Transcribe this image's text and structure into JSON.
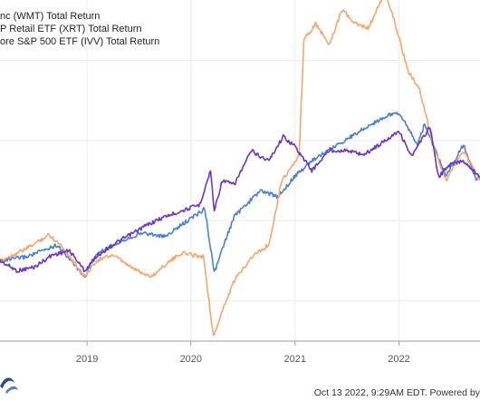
{
  "chart_data": {
    "type": "line",
    "title": "",
    "xlabel": "",
    "ylabel": "",
    "x_ticks": [
      "2019",
      "2020",
      "2021",
      "2022"
    ],
    "x_domain": [
      "2018-03-01",
      "2022-10-13"
    ],
    "ylim": [
      -40,
      130
    ],
    "grid": true,
    "legend_position": "top-left",
    "series": [
      {
        "name": "nc (WMT) Total Return",
        "color": "#6a35c4",
        "points": [
          [
            "2018-03-01",
            0
          ],
          [
            "2018-05-01",
            -5
          ],
          [
            "2018-07-01",
            -3
          ],
          [
            "2018-09-01",
            3
          ],
          [
            "2018-11-01",
            5
          ],
          [
            "2018-12-24",
            -5
          ],
          [
            "2019-02-01",
            2
          ],
          [
            "2019-04-01",
            8
          ],
          [
            "2019-06-01",
            13
          ],
          [
            "2019-08-01",
            18
          ],
          [
            "2019-10-01",
            22
          ],
          [
            "2019-12-01",
            25
          ],
          [
            "2020-02-01",
            28
          ],
          [
            "2020-03-10",
            45
          ],
          [
            "2020-03-23",
            25
          ],
          [
            "2020-04-20",
            40
          ],
          [
            "2020-06-01",
            38
          ],
          [
            "2020-08-01",
            55
          ],
          [
            "2020-09-01",
            52
          ],
          [
            "2020-10-01",
            50
          ],
          [
            "2020-11-20",
            62
          ],
          [
            "2021-01-01",
            57
          ],
          [
            "2021-03-01",
            45
          ],
          [
            "2021-05-01",
            55
          ],
          [
            "2021-07-01",
            55
          ],
          [
            "2021-09-01",
            53
          ],
          [
            "2021-11-15",
            60
          ],
          [
            "2021-12-31",
            65
          ],
          [
            "2022-02-15",
            52
          ],
          [
            "2022-04-20",
            67
          ],
          [
            "2022-05-20",
            42
          ],
          [
            "2022-07-01",
            48
          ],
          [
            "2022-08-15",
            50
          ],
          [
            "2022-10-13",
            42
          ]
        ]
      },
      {
        "name": "P Retail ETF (XRT) Total Return",
        "color": "#f5a66e",
        "points": [
          [
            "2018-03-01",
            0
          ],
          [
            "2018-06-01",
            6
          ],
          [
            "2018-08-20",
            13
          ],
          [
            "2018-10-01",
            8
          ],
          [
            "2018-12-24",
            -8
          ],
          [
            "2019-02-01",
            0
          ],
          [
            "2019-04-01",
            3
          ],
          [
            "2019-06-01",
            -3
          ],
          [
            "2019-08-15",
            -8
          ],
          [
            "2019-10-01",
            -2
          ],
          [
            "2019-12-01",
            4
          ],
          [
            "2020-02-15",
            2
          ],
          [
            "2020-03-20",
            -38
          ],
          [
            "2020-04-15",
            -27
          ],
          [
            "2020-06-01",
            -10
          ],
          [
            "2020-08-01",
            2
          ],
          [
            "2020-10-01",
            8
          ],
          [
            "2020-11-15",
            40
          ],
          [
            "2021-01-15",
            52
          ],
          [
            "2021-02-01",
            110
          ],
          [
            "2021-03-15",
            118
          ],
          [
            "2021-05-01",
            108
          ],
          [
            "2021-06-15",
            125
          ],
          [
            "2021-08-01",
            118
          ],
          [
            "2021-09-15",
            116
          ],
          [
            "2021-11-15",
            134
          ],
          [
            "2021-12-31",
            112
          ],
          [
            "2022-02-01",
            95
          ],
          [
            "2022-03-15",
            85
          ],
          [
            "2022-05-01",
            58
          ],
          [
            "2022-06-15",
            40
          ],
          [
            "2022-08-15",
            55
          ],
          [
            "2022-10-13",
            40
          ]
        ]
      },
      {
        "name": "ore S&P 500 ETF (IVV) Total Return",
        "color": "#4a80cf",
        "points": [
          [
            "2018-03-01",
            0
          ],
          [
            "2018-06-01",
            2
          ],
          [
            "2018-09-20",
            8
          ],
          [
            "2018-12-24",
            -8
          ],
          [
            "2019-02-01",
            3
          ],
          [
            "2019-05-01",
            10
          ],
          [
            "2019-07-15",
            14
          ],
          [
            "2019-10-01",
            12
          ],
          [
            "2020-02-19",
            26
          ],
          [
            "2020-03-23",
            -6
          ],
          [
            "2020-05-01",
            10
          ],
          [
            "2020-06-01",
            22
          ],
          [
            "2020-09-01",
            35
          ],
          [
            "2020-11-01",
            32
          ],
          [
            "2020-12-31",
            42
          ],
          [
            "2021-03-01",
            50
          ],
          [
            "2021-06-01",
            58
          ],
          [
            "2021-09-01",
            66
          ],
          [
            "2021-11-15",
            72
          ],
          [
            "2021-12-31",
            74
          ],
          [
            "2022-03-08",
            58
          ],
          [
            "2022-04-01",
            68
          ],
          [
            "2022-06-16",
            42
          ],
          [
            "2022-08-16",
            58
          ],
          [
            "2022-09-30",
            40
          ],
          [
            "2022-10-13",
            42
          ]
        ]
      }
    ]
  },
  "footer": {
    "timestamp": "Oct 13 2022, 9:29AM EDT.  Powered by"
  },
  "colors": {
    "grid": "#ececec",
    "axis": "#555555",
    "logo": "#2b4d8a"
  }
}
